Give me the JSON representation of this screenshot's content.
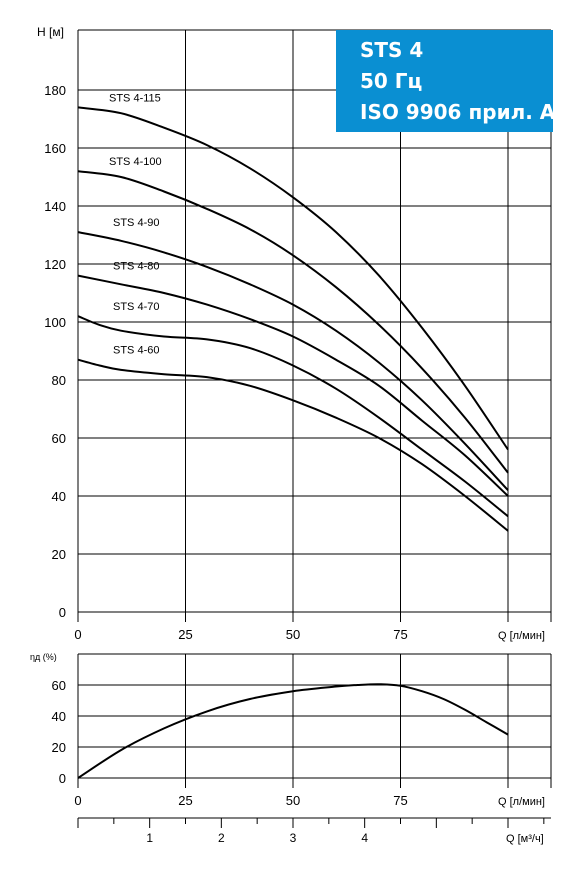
{
  "title_box": {
    "line1": "STS 4",
    "line2": "50 Гц",
    "line3": "ISO 9906 прил. А",
    "background": "#0a8fd2"
  },
  "chart_data": [
    {
      "type": "line",
      "ylabel": "H [м]",
      "xlabel": "Q [л/мин]",
      "xlim": [
        0,
        110
      ],
      "ylim": [
        0,
        180
      ],
      "xticks": [
        0,
        25,
        50,
        75
      ],
      "yticks": [
        0,
        20,
        40,
        60,
        80,
        100,
        120,
        140,
        160,
        180
      ],
      "grid": true,
      "series": [
        {
          "name": "STS 4-115",
          "x": [
            0,
            10,
            20,
            30,
            40,
            50,
            60,
            70,
            80,
            90,
            100
          ],
          "y": [
            174,
            172,
            167,
            161,
            153,
            143,
            131,
            116,
            98,
            78,
            56
          ]
        },
        {
          "name": "STS 4-100",
          "x": [
            0,
            10,
            20,
            30,
            40,
            50,
            60,
            70,
            80,
            90,
            100
          ],
          "y": [
            152,
            150,
            145,
            139,
            132,
            123,
            112,
            99,
            84,
            67,
            48
          ]
        },
        {
          "name": "STS 4-90",
          "x": [
            0,
            10,
            20,
            30,
            40,
            50,
            60,
            70,
            80,
            90,
            100
          ],
          "y": [
            131,
            128,
            124,
            119,
            113,
            106,
            97,
            86,
            73,
            58,
            42
          ]
        },
        {
          "name": "STS 4-80",
          "x": [
            0,
            10,
            20,
            30,
            40,
            50,
            60,
            70,
            80,
            90,
            100
          ],
          "y": [
            116,
            113,
            110,
            106,
            101,
            95,
            87,
            78,
            66,
            54,
            40
          ]
        },
        {
          "name": "STS 4-70",
          "x": [
            0,
            5,
            10,
            20,
            30,
            40,
            50,
            60,
            70,
            80,
            90,
            100
          ],
          "y": [
            102,
            99,
            97,
            95,
            94,
            91,
            85,
            77,
            67,
            56,
            45,
            33
          ]
        },
        {
          "name": "STS 4-60",
          "x": [
            0,
            5,
            10,
            20,
            30,
            40,
            50,
            60,
            70,
            80,
            90,
            100
          ],
          "y": [
            87,
            85,
            83.5,
            82,
            81,
            78,
            73,
            67,
            60,
            51,
            40,
            28
          ]
        }
      ]
    },
    {
      "type": "line",
      "ylabel": "ηд (%)",
      "xlabel": "Q [л/мин]",
      "secondary_xlabel": "Q [м³/ч]",
      "xlim": [
        0,
        110
      ],
      "ylim": [
        0,
        60
      ],
      "xticks": [
        0,
        25,
        50,
        75
      ],
      "yticks": [
        0,
        20,
        40,
        60
      ],
      "secondary_xticks": [
        1,
        2,
        3,
        4
      ],
      "grid": true,
      "series": [
        {
          "x": [
            0,
            10,
            20,
            30,
            40,
            50,
            60,
            65,
            70,
            75,
            80,
            85,
            90,
            95,
            100
          ],
          "y": [
            0,
            18,
            32,
            43,
            51,
            56,
            59,
            60,
            60.5,
            59.5,
            56,
            51,
            44,
            36,
            28
          ]
        }
      ]
    }
  ]
}
